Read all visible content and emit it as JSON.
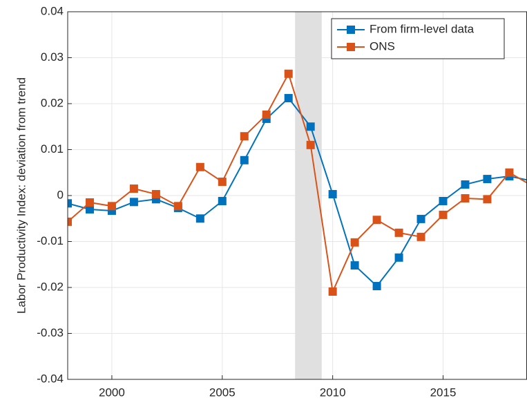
{
  "chart_data": {
    "type": "line",
    "ylabel": "Labor Productivity Index: deviation from trend",
    "x": [
      1998,
      1999,
      2000,
      2001,
      2002,
      2003,
      2004,
      2005,
      2006,
      2007,
      2008,
      2009,
      2010,
      2011,
      2012,
      2013,
      2014,
      2015,
      2016,
      2017,
      2018,
      2019
    ],
    "series": [
      {
        "name": "From firm-level data",
        "color": "#0072bd",
        "values": [
          -0.0017,
          -0.003,
          -0.0033,
          -0.0014,
          -0.0008,
          -0.0027,
          -0.005,
          -0.0012,
          0.0077,
          0.0167,
          0.0212,
          0.015,
          0.0003,
          -0.0152,
          -0.0197,
          -0.0135,
          -0.0051,
          -0.0012,
          0.0024,
          0.0036,
          0.0042,
          0.0032
        ]
      },
      {
        "name": "ONS",
        "color": "#d95319",
        "values": [
          -0.0057,
          -0.0015,
          -0.0023,
          0.0015,
          0.0003,
          -0.0023,
          0.0062,
          0.003,
          0.0129,
          0.0176,
          0.0265,
          0.011,
          -0.0209,
          -0.0102,
          -0.0053,
          -0.0081,
          -0.009,
          -0.0042,
          -0.0006,
          -0.0008,
          0.005,
          0.0022
        ]
      }
    ],
    "xlim": [
      1998,
      2018.8
    ],
    "xticks": [
      2000,
      2005,
      2010,
      2015
    ],
    "ylim": [
      -0.04,
      0.04
    ],
    "yticks": [
      -0.04,
      -0.03,
      -0.02,
      -0.01,
      0,
      0.01,
      0.02,
      0.03,
      0.04
    ],
    "shaded_region": [
      2008.3,
      2009.5
    ],
    "grid": true,
    "legend": "upper right"
  }
}
